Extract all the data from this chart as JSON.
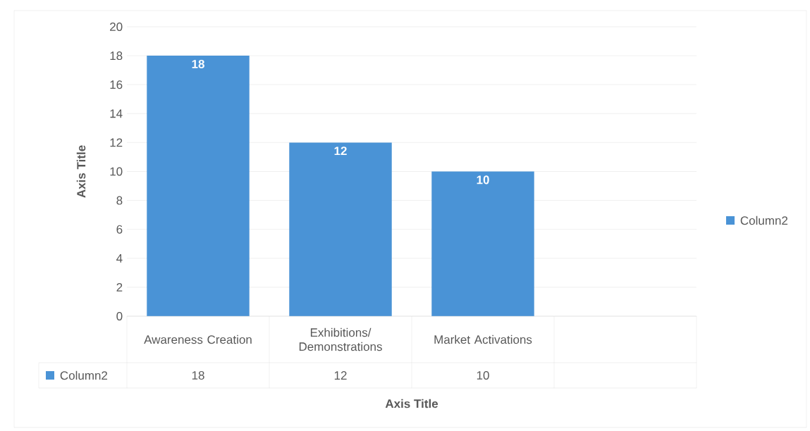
{
  "chart_data": {
    "type": "bar",
    "xlabel": "Axis Title",
    "ylabel": "Axis Title",
    "categories": [
      "Awareness Creation",
      "Exhibitions/ Demonstrations",
      "Market Activations",
      null
    ],
    "series": [
      {
        "name": "Column2",
        "color": "#4a93d6",
        "values": [
          18,
          12,
          10,
          null
        ]
      }
    ],
    "annotations": [
      "Column2",
      "18",
      "12",
      "10"
    ],
    "ylim": [
      0,
      20
    ],
    "yticks": [
      0,
      2,
      4,
      6,
      8,
      10,
      12,
      14,
      16,
      18,
      20
    ],
    "grid": "y",
    "legend": "right",
    "data_labels": true
  }
}
